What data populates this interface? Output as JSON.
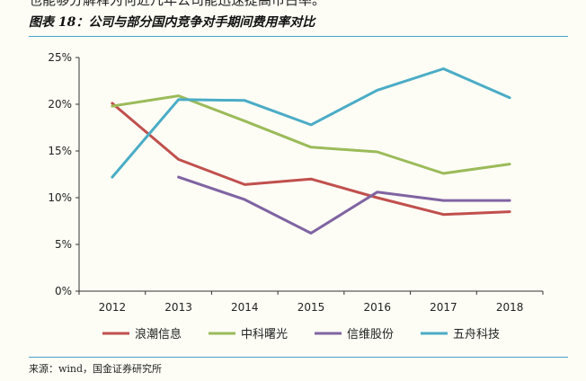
{
  "header": {
    "clipped_text": "也能够分解释为何近几年公司能迅速提高市占率。",
    "figure_title": "图表 18：公司与部分国内竞争对手期间费用率对比"
  },
  "footer": {
    "source": "来源：wind，国金证券研究所"
  },
  "chart_data": {
    "type": "line",
    "x": [
      "2012",
      "2013",
      "2014",
      "2015",
      "2016",
      "2017",
      "2018"
    ],
    "y_ticks": [
      "0%",
      "5%",
      "10%",
      "15%",
      "20%",
      "25%"
    ],
    "ylim": [
      0,
      25
    ],
    "grid": false,
    "legend_position": "bottom",
    "series": [
      {
        "name": "浪潮信息",
        "color": "#c0504d",
        "values": [
          20.1,
          14.1,
          11.4,
          12.0,
          10.0,
          8.2,
          8.5
        ]
      },
      {
        "name": "中科曙光",
        "color": "#9bbb59",
        "values": [
          19.8,
          20.9,
          18.2,
          15.4,
          14.9,
          12.6,
          13.6
        ]
      },
      {
        "name": "信维股份",
        "color": "#8064a2",
        "values": [
          null,
          12.2,
          9.8,
          6.2,
          10.6,
          9.7,
          9.7
        ]
      },
      {
        "name": "五舟科技",
        "color": "#4bacc6",
        "values": [
          12.2,
          20.5,
          20.4,
          17.8,
          21.5,
          23.8,
          20.7
        ]
      }
    ]
  }
}
